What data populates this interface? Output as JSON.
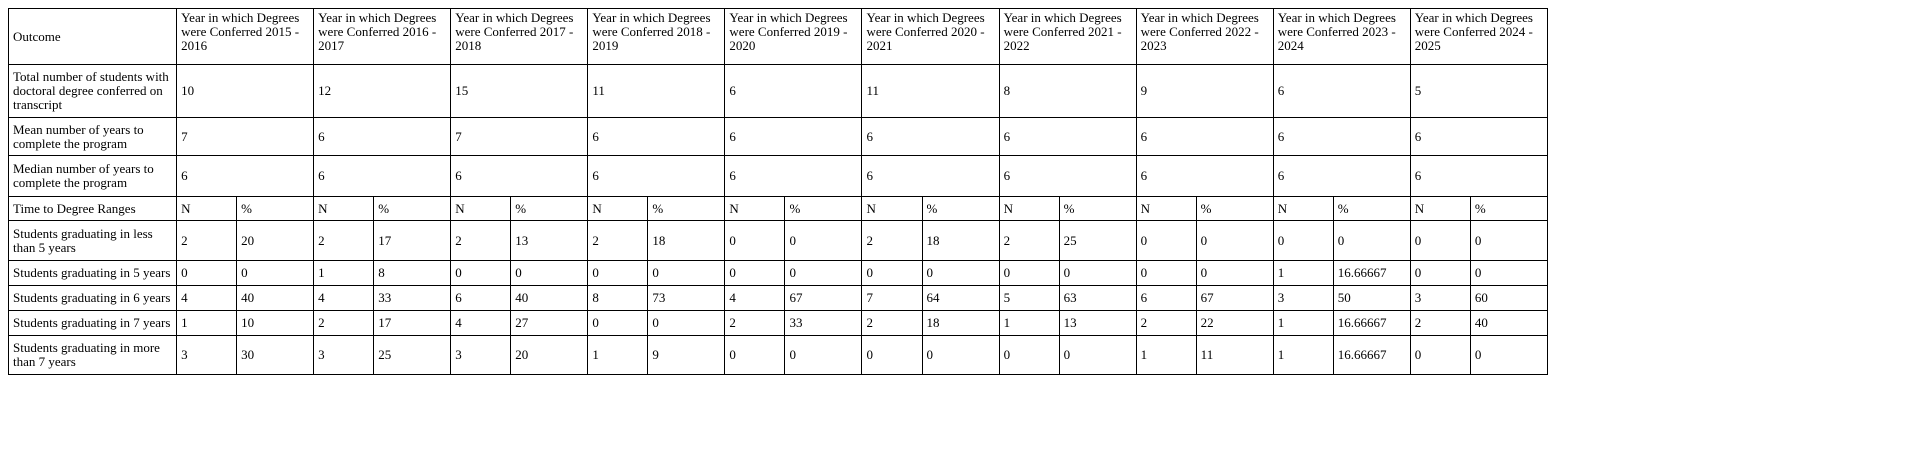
{
  "header": {
    "outcome": "Outcome",
    "years": [
      "Year in which Degrees were Conferred 2015 - 2016",
      "Year in which Degrees were Conferred 2016 - 2017",
      "Year in which Degrees were Conferred 2017 - 2018",
      "Year in which Degrees were Conferred 2018 - 2019",
      "Year in which Degrees were Conferred 2019 - 2020",
      "Year in which Degrees were Conferred 2020 - 2021",
      "Year in which Degrees were Conferred 2021 - 2022",
      "Year in which Degrees were Conferred 2022 - 2023",
      "Year in which Degrees were Conferred 2023 - 2024",
      "Year in which Degrees were Conferred 2024 - 2025"
    ]
  },
  "summary_rows": [
    {
      "label": "Total number of students with doctoral degree conferred on transcript",
      "values": [
        10,
        12,
        15,
        11,
        6,
        11,
        8,
        9,
        6,
        5
      ]
    },
    {
      "label": "Mean number of years to complete the program",
      "values": [
        7,
        6,
        7,
        6,
        6,
        6,
        6,
        6,
        6,
        6
      ]
    },
    {
      "label": "Median number of years to complete the program",
      "values": [
        6,
        6,
        6,
        6,
        6,
        6,
        6,
        6,
        6,
        6
      ]
    }
  ],
  "ranges": {
    "label": "Time to Degree Ranges",
    "n": "N",
    "pct": "%"
  },
  "range_rows": [
    {
      "label": "Students graduating in less than 5 years",
      "values": [
        [
          2,
          20
        ],
        [
          2,
          17
        ],
        [
          2,
          13
        ],
        [
          2,
          18
        ],
        [
          0,
          0
        ],
        [
          2,
          18
        ],
        [
          2,
          25
        ],
        [
          0,
          0
        ],
        [
          0,
          0
        ],
        [
          0,
          0
        ]
      ]
    },
    {
      "label": "Students graduating in 5 years",
      "values": [
        [
          0,
          0
        ],
        [
          1,
          8
        ],
        [
          0,
          0
        ],
        [
          0,
          0
        ],
        [
          0,
          0
        ],
        [
          0,
          0
        ],
        [
          0,
          0
        ],
        [
          0,
          0
        ],
        [
          1,
          16.66667
        ],
        [
          0,
          0
        ]
      ]
    },
    {
      "label": "Students graduating in 6 years",
      "values": [
        [
          4,
          40
        ],
        [
          4,
          33
        ],
        [
          6,
          40
        ],
        [
          8,
          73
        ],
        [
          4,
          67
        ],
        [
          7,
          64
        ],
        [
          5,
          63
        ],
        [
          6,
          67
        ],
        [
          3,
          50
        ],
        [
          3,
          60
        ]
      ]
    },
    {
      "label": "Students graduating in 7 years",
      "values": [
        [
          1,
          10
        ],
        [
          2,
          17
        ],
        [
          4,
          27
        ],
        [
          0,
          0
        ],
        [
          2,
          33
        ],
        [
          2,
          18
        ],
        [
          1,
          13
        ],
        [
          2,
          22
        ],
        [
          1,
          16.66667
        ],
        [
          2,
          40
        ]
      ]
    },
    {
      "label": "Students graduating in more than 7 years",
      "values": [
        [
          3,
          30
        ],
        [
          3,
          25
        ],
        [
          3,
          20
        ],
        [
          1,
          9
        ],
        [
          0,
          0
        ],
        [
          0,
          0
        ],
        [
          0,
          0
        ],
        [
          1,
          11
        ],
        [
          1,
          16.66667
        ],
        [
          0,
          0
        ]
      ]
    }
  ]
}
